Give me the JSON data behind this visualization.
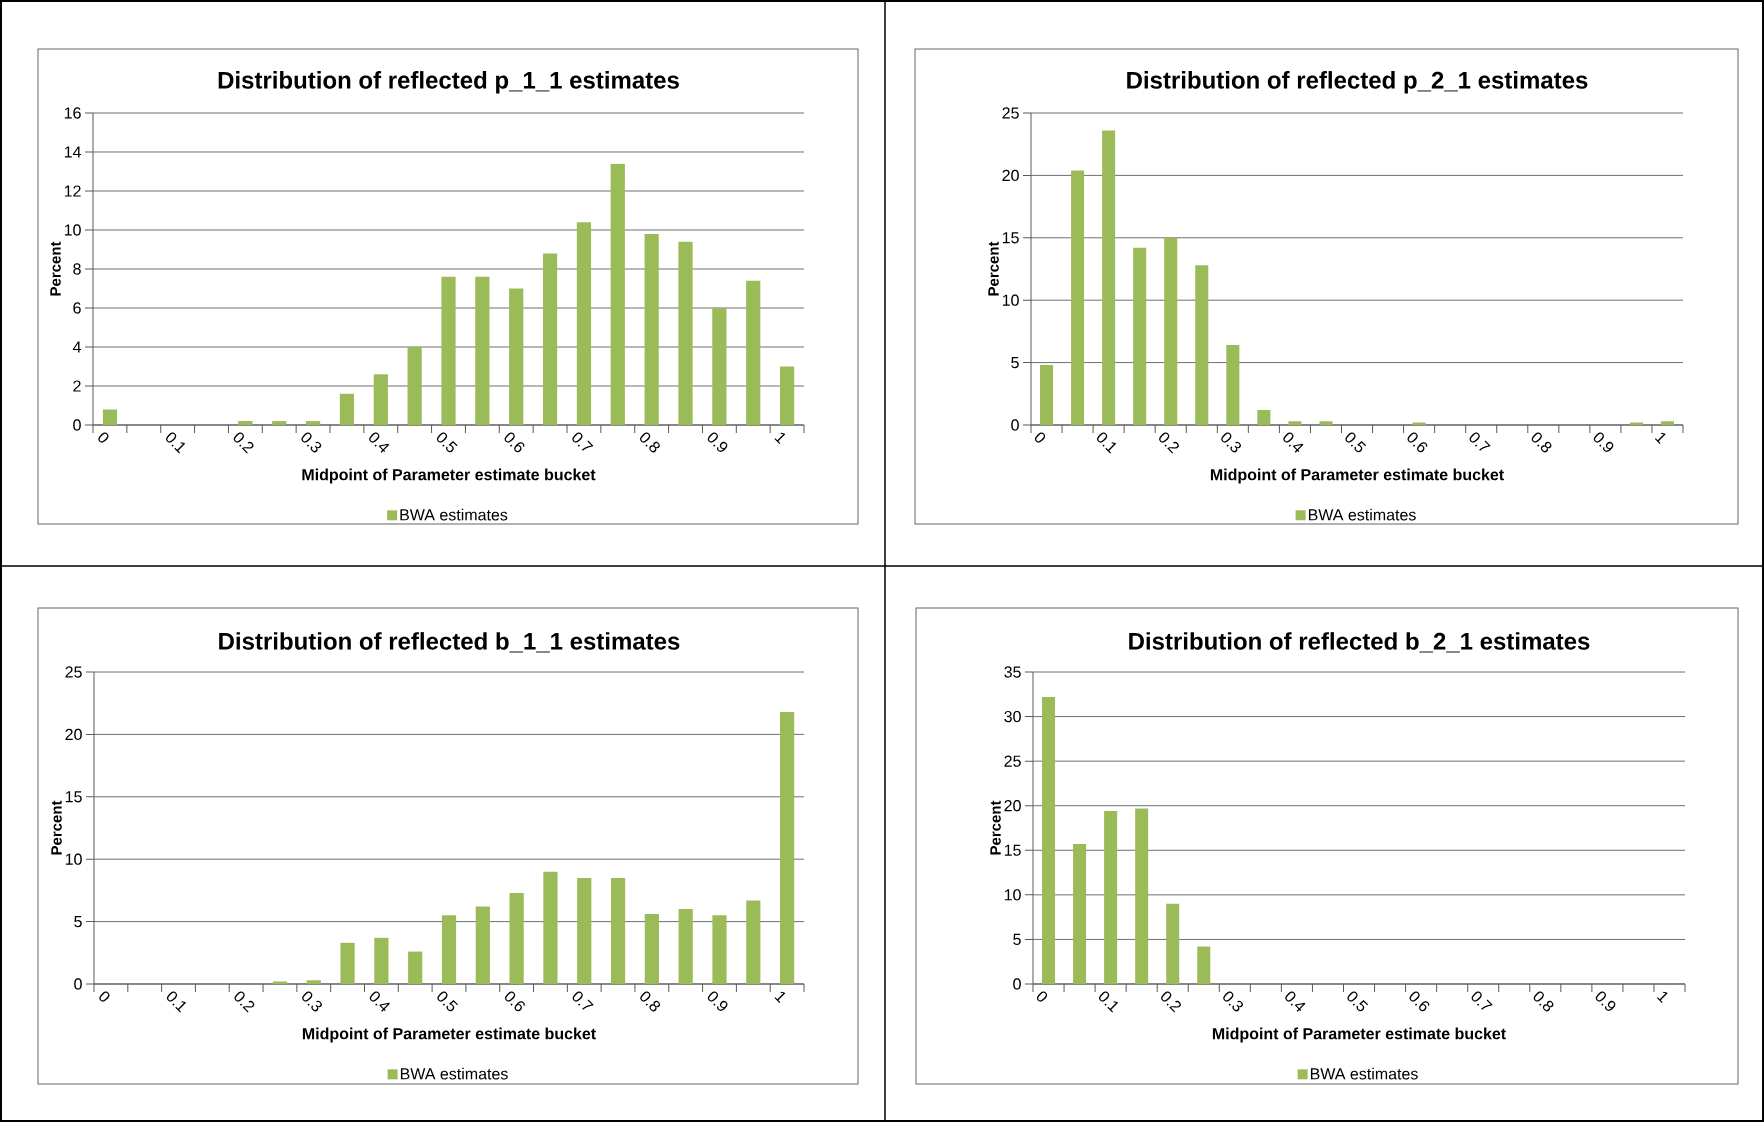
{
  "chart_data": [
    {
      "type": "bar",
      "title": "Distribution of reflected p_1_1 estimates",
      "xlabel": "Midpoint of Parameter estimate bucket",
      "ylabel": "Percent",
      "categories": [
        "0",
        null,
        "0.1",
        null,
        "0.2",
        null,
        "0.3",
        null,
        "0.4",
        null,
        "0.5",
        null,
        "0.6",
        null,
        "0.7",
        null,
        "0.8",
        null,
        "0.9",
        null,
        "1"
      ],
      "series": [
        {
          "name": "BWA estimates",
          "color": "#9bbb59",
          "values": [
            0.8,
            0,
            0,
            0,
            0.2,
            0.2,
            0.2,
            1.6,
            2.6,
            4.0,
            7.6,
            7.6,
            7.0,
            8.8,
            10.4,
            13.4,
            9.8,
            9.4,
            6.0,
            7.4,
            3.0
          ]
        }
      ],
      "ylim": [
        0,
        16
      ],
      "yticks": [
        0,
        2,
        4,
        6,
        8,
        10,
        12,
        14,
        16
      ],
      "grid": "y",
      "legend": "bottom"
    },
    {
      "type": "bar",
      "title": "Distribution of reflected p_2_1 estimates",
      "xlabel": "Midpoint of Parameter estimate bucket",
      "ylabel": "Percent",
      "categories": [
        "0",
        null,
        "0.1",
        null,
        "0.2",
        null,
        "0.3",
        null,
        "0.4",
        null,
        "0.5",
        null,
        "0.6",
        null,
        "0.7",
        null,
        "0.8",
        null,
        "0.9",
        null,
        "1"
      ],
      "series": [
        {
          "name": "BWA estimates",
          "color": "#9bbb59",
          "values": [
            4.8,
            20.4,
            23.6,
            14.2,
            15.0,
            12.8,
            6.4,
            1.2,
            0.3,
            0.3,
            0,
            0,
            0.2,
            0,
            0,
            0,
            0,
            0,
            0,
            0.2,
            0.3
          ]
        }
      ],
      "ylim": [
        0,
        25
      ],
      "yticks": [
        0,
        5,
        10,
        15,
        20,
        25
      ],
      "grid": "y",
      "legend": "bottom"
    },
    {
      "type": "bar",
      "title": "Distribution of reflected b_1_1 estimates",
      "xlabel": "Midpoint of Parameter estimate bucket",
      "ylabel": "Percent",
      "categories": [
        "0",
        null,
        "0.1",
        null,
        "0.2",
        null,
        "0.3",
        null,
        "0.4",
        null,
        "0.5",
        null,
        "0.6",
        null,
        "0.7",
        null,
        "0.8",
        null,
        "0.9",
        null,
        "1"
      ],
      "series": [
        {
          "name": "BWA estimates",
          "color": "#9bbb59",
          "values": [
            0,
            0,
            0,
            0,
            0,
            0.2,
            0.3,
            3.3,
            3.7,
            2.6,
            5.5,
            6.2,
            7.3,
            9.0,
            8.5,
            8.5,
            5.6,
            6.0,
            5.5,
            6.7,
            21.8
          ]
        }
      ],
      "ylim": [
        0,
        25
      ],
      "yticks": [
        0,
        5,
        10,
        15,
        20,
        25
      ],
      "grid": "y",
      "legend": "bottom"
    },
    {
      "type": "bar",
      "title": "Distribution of reflected b_2_1 estimates",
      "xlabel": "Midpoint of Parameter estimate bucket",
      "ylabel": "Percent",
      "categories": [
        "0",
        null,
        "0.1",
        null,
        "0.2",
        null,
        "0.3",
        null,
        "0.4",
        null,
        "0.5",
        null,
        "0.6",
        null,
        "0.7",
        null,
        "0.8",
        null,
        "0.9",
        null,
        "1"
      ],
      "series": [
        {
          "name": "BWA estimates",
          "color": "#9bbb59",
          "values": [
            32.2,
            15.7,
            19.4,
            19.7,
            9.0,
            4.2,
            0,
            0,
            0,
            0,
            0,
            0,
            0,
            0,
            0,
            0,
            0,
            0,
            0,
            0,
            0
          ]
        }
      ],
      "ylim": [
        0,
        35
      ],
      "yticks": [
        0,
        5,
        10,
        15,
        20,
        25,
        30,
        35
      ],
      "grid": "y",
      "legend": "bottom"
    }
  ]
}
